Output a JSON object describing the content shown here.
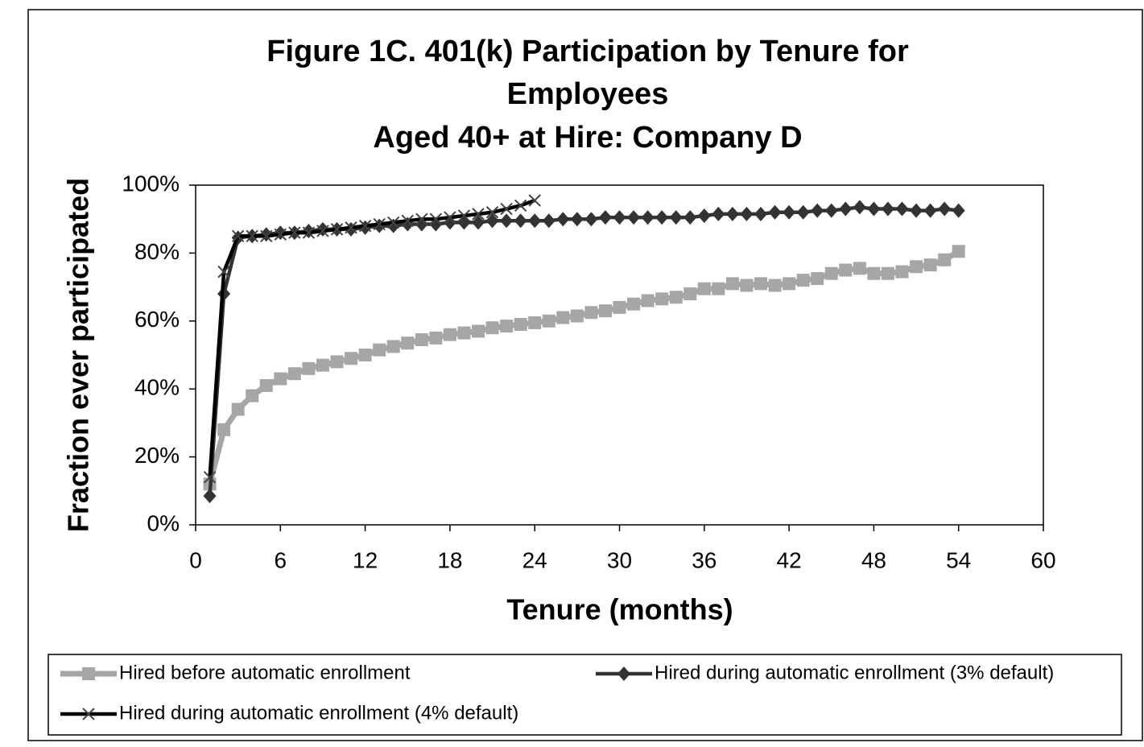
{
  "chart_data": {
    "type": "line",
    "title": [
      "Figure 1C. 401(k) Participation by Tenure for",
      "Employees",
      "Aged 40+ at Hire: Company D"
    ],
    "x_label": "Tenure (months)",
    "y_label": "Fraction ever participated",
    "x": [
      1,
      2,
      3,
      4,
      5,
      6,
      7,
      8,
      9,
      10,
      11,
      12,
      13,
      14,
      15,
      16,
      17,
      18,
      19,
      20,
      21,
      22,
      23,
      24,
      25,
      26,
      27,
      28,
      29,
      30,
      31,
      32,
      33,
      34,
      35,
      36,
      37,
      38,
      39,
      40,
      41,
      42,
      43,
      44,
      45,
      46,
      47,
      48,
      49,
      50,
      51,
      52,
      53,
      54
    ],
    "xlim": [
      0,
      60
    ],
    "xticks": [
      0,
      6,
      12,
      18,
      24,
      30,
      36,
      42,
      48,
      54,
      60
    ],
    "ylim": [
      0,
      100
    ],
    "yticks": [
      {
        "value": 0,
        "label": "0%"
      },
      {
        "value": 20,
        "label": "20%"
      },
      {
        "value": 40,
        "label": "40%"
      },
      {
        "value": 60,
        "label": "60%"
      },
      {
        "value": 80,
        "label": "80%"
      },
      {
        "value": 100,
        "label": "100%"
      }
    ],
    "legend": "bottom",
    "series": [
      {
        "name": "Hired before automatic enrollment",
        "color": "#a6a6a6",
        "marker": "square",
        "values": [
          12,
          28,
          34,
          38,
          41,
          43,
          44.5,
          46,
          47,
          48,
          49,
          50,
          51.5,
          52.5,
          53.5,
          54.5,
          55,
          56,
          56.5,
          57,
          58,
          58.5,
          59,
          59.5,
          60,
          61,
          61.5,
          62.5,
          63,
          64,
          65,
          66,
          66.5,
          67,
          68,
          69.5,
          69.5,
          71,
          70.5,
          71,
          70.5,
          71,
          72,
          72.5,
          74,
          75,
          75.5,
          74,
          74,
          74.5,
          76,
          76.5,
          78,
          80.5
        ]
      },
      {
        "name": "Hired during automatic enrollment (3% default)",
        "color": "#333333",
        "marker": "diamond",
        "values": [
          8.5,
          68,
          84.5,
          85,
          85.5,
          86,
          86,
          86.5,
          87,
          87,
          87,
          87.5,
          88,
          88,
          88.5,
          88.5,
          88.5,
          89,
          89,
          89,
          89.5,
          89.5,
          89.5,
          89.5,
          89.5,
          90,
          90,
          90,
          90.5,
          90.5,
          90.5,
          90.5,
          90.5,
          90.5,
          90.5,
          91,
          91.5,
          91.5,
          91.5,
          91.5,
          92,
          92,
          92,
          92.5,
          92.5,
          93,
          93.5,
          93,
          93,
          93,
          92.5,
          92.5,
          93,
          92.5
        ]
      },
      {
        "name": "Hired during automatic enrollment (4% default)",
        "color": "#000000",
        "marker": "x",
        "values": [
          14,
          74.5,
          85,
          85,
          85,
          85.5,
          86,
          86,
          86.5,
          87,
          87.5,
          88,
          88.5,
          89,
          89.5,
          90,
          90,
          90.5,
          91,
          91.5,
          92,
          93,
          94,
          95.5,
          null,
          null,
          null,
          null,
          null,
          null,
          null,
          null,
          null,
          null,
          null,
          null,
          null,
          null,
          null,
          null,
          null,
          null,
          null,
          null,
          null,
          null,
          null,
          null,
          null,
          null,
          null,
          null,
          null,
          null
        ]
      }
    ]
  }
}
